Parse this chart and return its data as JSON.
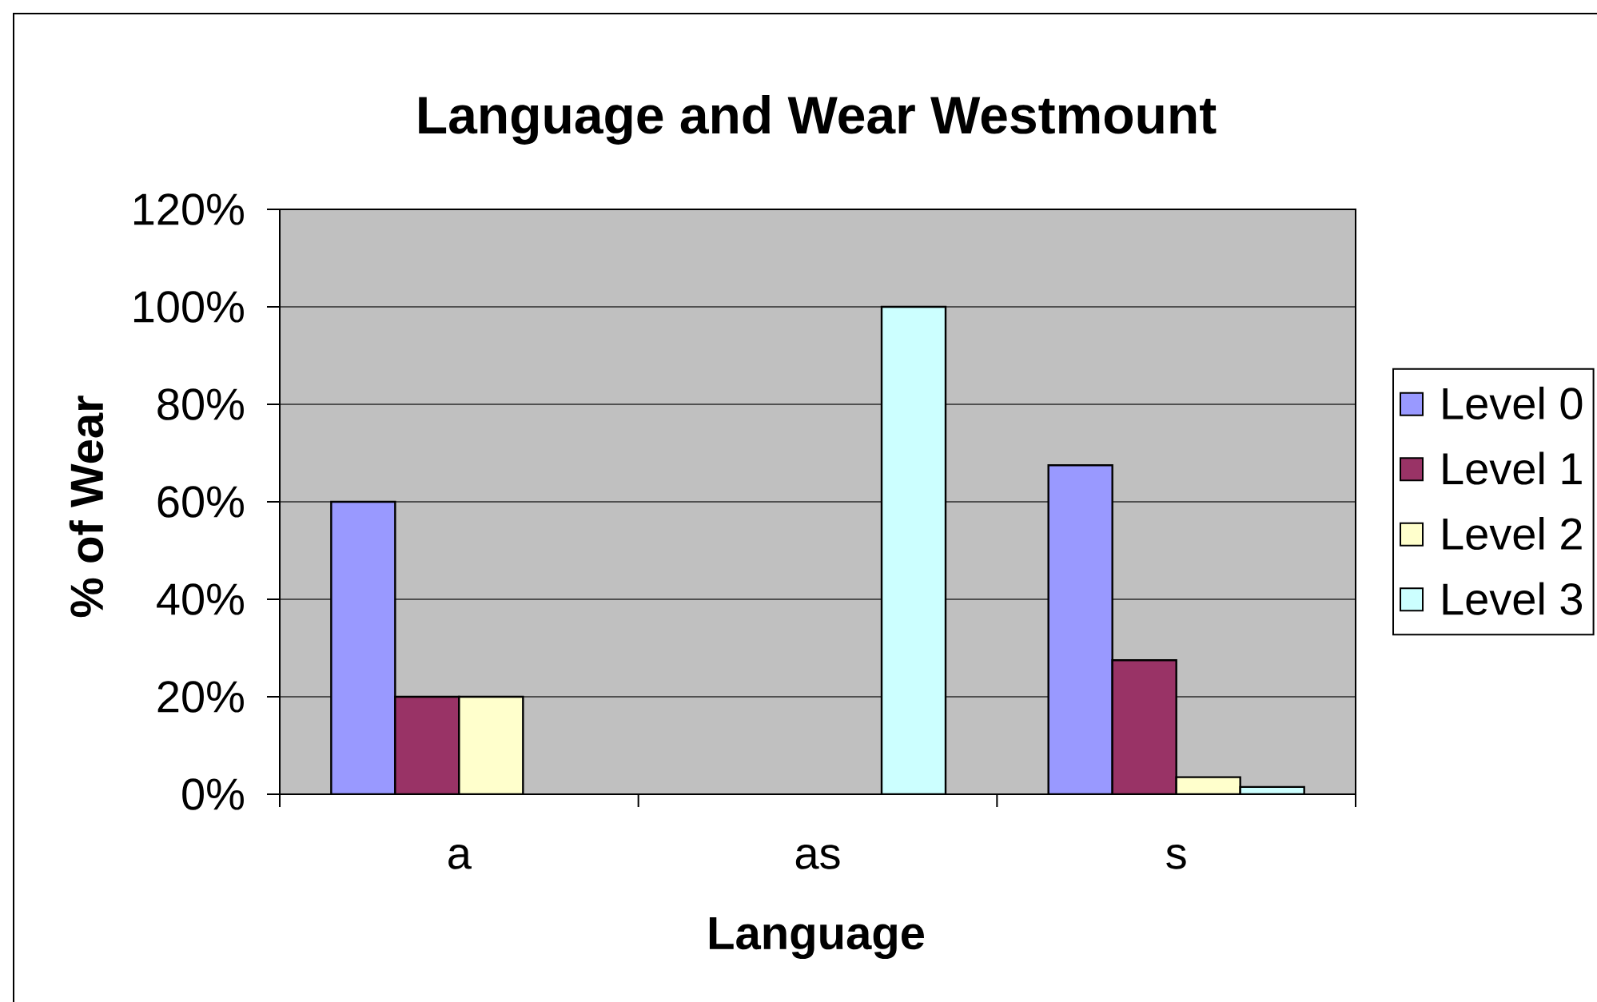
{
  "chart_data": {
    "type": "bar",
    "title": "Language and Wear Westmount",
    "xlabel": "Language",
    "ylabel": "% of Wear",
    "categories": [
      "a",
      "as",
      "s"
    ],
    "series": [
      {
        "name": "Level 0",
        "color": "#9999ff",
        "values": [
          60,
          null,
          67.5
        ]
      },
      {
        "name": "Level 1",
        "color": "#993366",
        "values": [
          20,
          null,
          27.5
        ]
      },
      {
        "name": "Level 2",
        "color": "#ffffcc",
        "values": [
          20,
          null,
          3.5
        ]
      },
      {
        "name": "Level 3",
        "color": "#ccffff",
        "values": [
          null,
          100,
          1.5
        ]
      }
    ],
    "ylim": [
      0,
      120
    ],
    "yticks": [
      {
        "value": 0,
        "label": "0%"
      },
      {
        "value": 20,
        "label": "20%"
      },
      {
        "value": 40,
        "label": "40%"
      },
      {
        "value": 60,
        "label": "60%"
      },
      {
        "value": 80,
        "label": "80%"
      },
      {
        "value": 100,
        "label": "100%"
      },
      {
        "value": 120,
        "label": "120%"
      }
    ],
    "grid": "y",
    "legend": "right"
  }
}
